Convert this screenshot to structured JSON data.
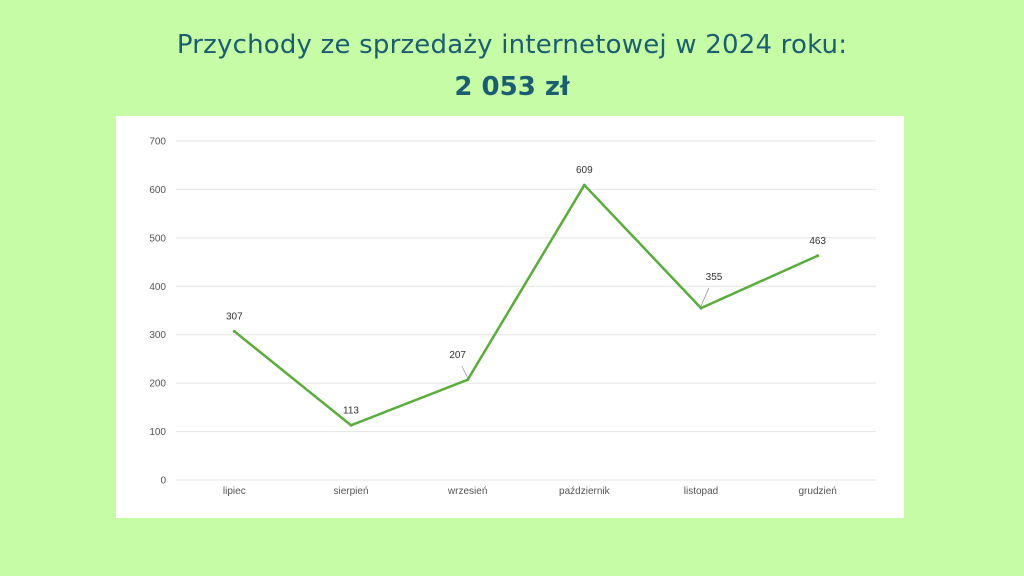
{
  "title": "Przychody ze sprzedaży internetowej w 2024 roku:",
  "total": "2 053 zł",
  "chart_data": {
    "type": "line",
    "categories": [
      "lipiec",
      "sierpień",
      "wrzesień",
      "październik",
      "listopad",
      "grudzień"
    ],
    "values": [
      307,
      113,
      207,
      609,
      355,
      463
    ],
    "data_labels": [
      "307",
      "113",
      "207",
      "609",
      "355",
      "463"
    ],
    "yticks": [
      0,
      100,
      200,
      300,
      400,
      500,
      600,
      700
    ],
    "ylim": [
      0,
      700
    ],
    "grid": true,
    "line_color": "#5aac3c",
    "gridline_color": "#e4e4e4"
  }
}
